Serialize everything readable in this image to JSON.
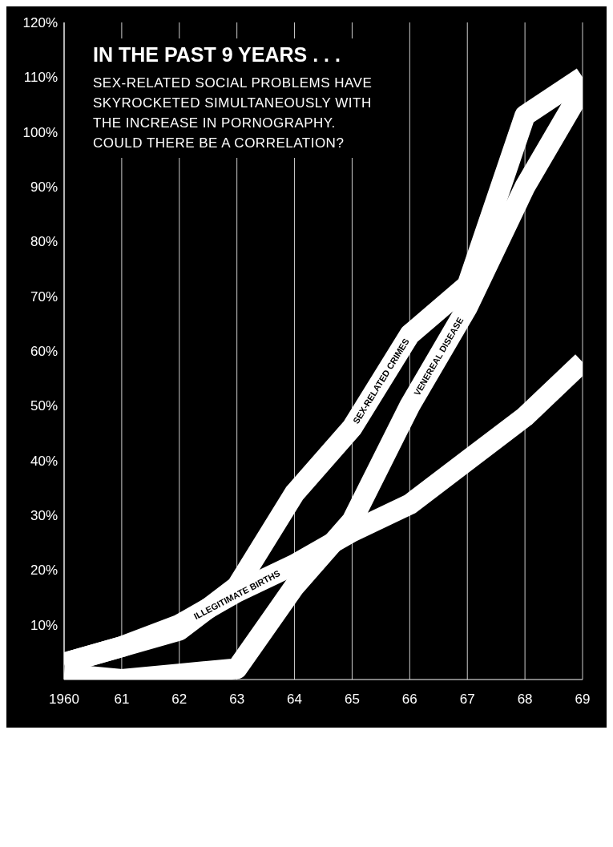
{
  "chart_data": {
    "type": "line",
    "title": "IN THE PAST 9 YEARS . . .",
    "subtitle": "SEX-RELATED SOCIAL PROBLEMS HAVE SKYROCKETED SIMULTANEOUSLY WITH THE INCREASE IN PORNOGRAPHY. COULD THERE BE A CORRELATION?",
    "x": [
      1960,
      1961,
      1962,
      1963,
      1964,
      1965,
      1966,
      1967,
      1968,
      1969
    ],
    "series": [
      {
        "name": "SEX-RELATED CRIMES",
        "color": "#ffffff",
        "values": [
          3,
          6,
          9,
          17,
          34,
          46,
          63,
          72,
          103,
          110
        ]
      },
      {
        "name": "VENEREAL DISEASE",
        "color": "#ffffff",
        "values": [
          1,
          0,
          1,
          2,
          17,
          29,
          50,
          68,
          90,
          108
        ]
      },
      {
        "name": "ILLEGITIMATE BIRTHS",
        "color": "#ffffff",
        "values": [
          3,
          6,
          10,
          16,
          21,
          27,
          32,
          40,
          48,
          58
        ]
      }
    ],
    "xlim": [
      1960,
      1969
    ],
    "xticks": [
      {
        "value": 1960,
        "label": "1960"
      },
      {
        "value": 1961,
        "label": "61"
      },
      {
        "value": 1962,
        "label": "62"
      },
      {
        "value": 1963,
        "label": "63"
      },
      {
        "value": 1964,
        "label": "64"
      },
      {
        "value": 1965,
        "label": "65"
      },
      {
        "value": 1966,
        "label": "66"
      },
      {
        "value": 1967,
        "label": "67"
      },
      {
        "value": 1968,
        "label": "68"
      },
      {
        "value": 1969,
        "label": "69"
      }
    ],
    "ylim": [
      0,
      120
    ],
    "yticks": [
      {
        "value": 10,
        "label": "10%"
      },
      {
        "value": 20,
        "label": "20%"
      },
      {
        "value": 30,
        "label": "30%"
      },
      {
        "value": 40,
        "label": "40%"
      },
      {
        "value": 50,
        "label": "50%"
      },
      {
        "value": 60,
        "label": "60%"
      },
      {
        "value": 70,
        "label": "70%"
      },
      {
        "value": 80,
        "label": "80%"
      },
      {
        "value": 90,
        "label": "90%"
      },
      {
        "value": 100,
        "label": "100%"
      },
      {
        "value": 110,
        "label": "110%"
      },
      {
        "value": 120,
        "label": "120%"
      }
    ],
    "grid": "x",
    "marker": "none",
    "line_style": "solid",
    "legend": false
  }
}
